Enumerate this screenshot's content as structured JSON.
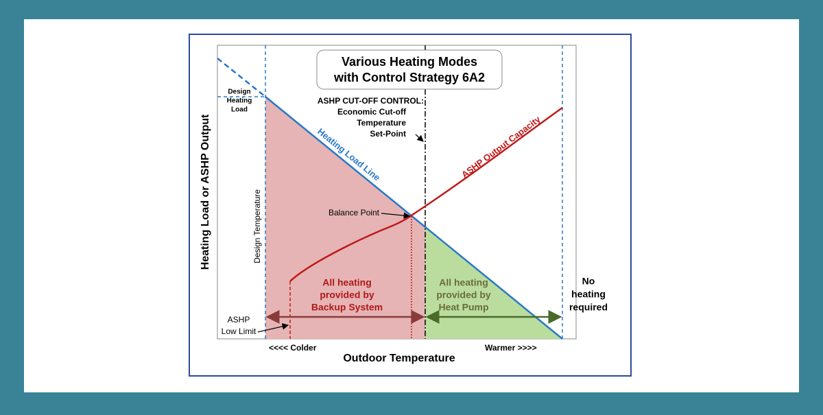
{
  "title": {
    "lines": [
      "Various Heating Modes",
      "with Control Strategy 6A2"
    ]
  },
  "axes": {
    "y_label": "Heating Load or ASHP Output",
    "x_label": "Outdoor Temperature",
    "x_left": "<<<< Colder",
    "x_right": "Warmer >>>>"
  },
  "annotations": {
    "design_heating_load": [
      "Design",
      "Heating",
      "Load"
    ],
    "design_temperature": "Design Temperature",
    "cutoff": [
      "ASHP CUT-OFF CONTROL:",
      "Economic Cut-off",
      "Temperature",
      "Set-Point"
    ],
    "heating_load_line": "Heating Load Line",
    "ashp_output": "ASHP Output Capacity",
    "balance_point": "Balance Point",
    "backup": [
      "All heating",
      "provided by",
      "Backup System"
    ],
    "heat_pump": [
      "All heating",
      "provided by",
      "Heat Pump"
    ],
    "no_heating": [
      "No",
      "heating",
      "required"
    ],
    "low_limit": [
      "ASHP",
      "Low Limit"
    ]
  }
}
